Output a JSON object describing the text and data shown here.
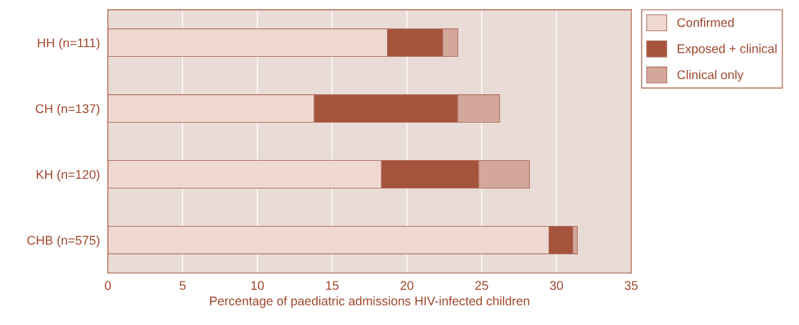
{
  "chart_data": {
    "type": "bar",
    "orientation": "horizontal",
    "stacked": true,
    "categories": [
      "HH (n=111)",
      "CH (n=137)",
      "KH (n=120)",
      "CHB (n=575)"
    ],
    "series": [
      {
        "name": "Confirmed",
        "color": "#eed8d1",
        "values": [
          18.7,
          13.8,
          18.3,
          29.5
        ]
      },
      {
        "name": "Exposed + clinical",
        "color": "#a4533d",
        "values": [
          3.7,
          9.6,
          6.5,
          1.6
        ]
      },
      {
        "name": "Clinical only",
        "color": "#d3a89b",
        "values": [
          1.0,
          2.8,
          3.4,
          0.3
        ]
      }
    ],
    "xlabel": "Percentage of paediatric admissions HIV-infected children",
    "xlim": [
      0,
      35
    ],
    "xticks": [
      0,
      5,
      10,
      15,
      20,
      25,
      30,
      35
    ],
    "grid": "x",
    "legend": "top right"
  }
}
